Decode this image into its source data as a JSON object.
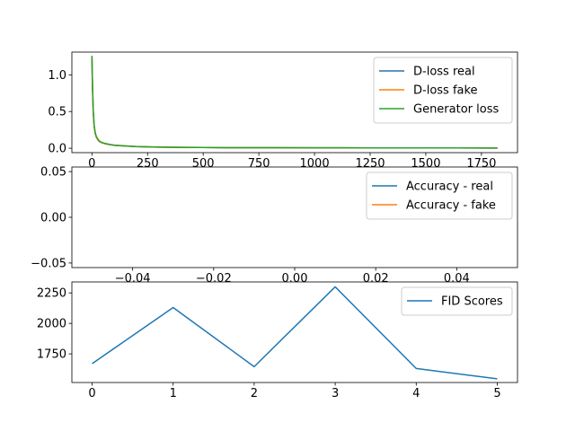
{
  "chart_data": [
    {
      "type": "line",
      "xlim": [
        -90,
        1912
      ],
      "ylim": [
        -0.06,
        1.31
      ],
      "xticks": [
        0,
        250,
        500,
        750,
        1000,
        1250,
        1500,
        1750
      ],
      "xtick_labels": [
        "0",
        "250",
        "500",
        "750",
        "1000",
        "1250",
        "1500",
        "1750"
      ],
      "yticks": [
        0.0,
        0.5,
        1.0
      ],
      "ytick_labels": [
        "0.0",
        "0.5",
        "1.0"
      ],
      "legend": "top-right",
      "grid": false,
      "series": [
        {
          "name": "D-loss real",
          "color": "#1f77b4",
          "x": [
            0,
            3,
            6,
            10,
            15,
            20,
            30,
            40,
            60,
            80,
            100,
            150,
            200,
            250,
            300,
            400,
            500,
            600,
            800,
            1000,
            1250,
            1500,
            1822
          ],
          "y": [
            1.25,
            0.8,
            0.5,
            0.3,
            0.2,
            0.15,
            0.1,
            0.08,
            0.06,
            0.05,
            0.04,
            0.03,
            0.022,
            0.018,
            0.015,
            0.012,
            0.01,
            0.008,
            0.007,
            0.006,
            0.005,
            0.004,
            0.003
          ]
        },
        {
          "name": "D-loss fake",
          "color": "#ff7f0e",
          "x": [
            0,
            3,
            6,
            10,
            15,
            20,
            30,
            40,
            60,
            80,
            100,
            150,
            200,
            250,
            300,
            400,
            500,
            600,
            800,
            1000,
            1250,
            1500,
            1822
          ],
          "y": [
            1.25,
            0.8,
            0.5,
            0.3,
            0.2,
            0.15,
            0.1,
            0.08,
            0.06,
            0.05,
            0.04,
            0.03,
            0.022,
            0.018,
            0.015,
            0.012,
            0.01,
            0.008,
            0.007,
            0.006,
            0.005,
            0.004,
            0.003
          ]
        },
        {
          "name": "Generator loss",
          "color": "#2ca02c",
          "x": [
            0,
            3,
            6,
            10,
            15,
            20,
            30,
            40,
            60,
            80,
            100,
            150,
            200,
            250,
            300,
            400,
            500,
            600,
            800,
            1000,
            1250,
            1500,
            1822
          ],
          "y": [
            1.26,
            0.82,
            0.52,
            0.32,
            0.21,
            0.16,
            0.11,
            0.085,
            0.065,
            0.052,
            0.042,
            0.031,
            0.023,
            0.019,
            0.016,
            0.012,
            0.01,
            0.008,
            0.007,
            0.006,
            0.005,
            0.004,
            0.003
          ]
        }
      ]
    },
    {
      "type": "line",
      "xlim": [
        -0.055,
        0.055
      ],
      "ylim": [
        -0.055,
        0.055
      ],
      "xticks": [
        -0.04,
        -0.02,
        0.0,
        0.02,
        0.04
      ],
      "xtick_labels": [
        "−0.04",
        "−0.02",
        "0.00",
        "0.02",
        "0.04"
      ],
      "yticks": [
        -0.05,
        0.0,
        0.05
      ],
      "ytick_labels": [
        "−0.05",
        "0.00",
        "0.05"
      ],
      "legend": "top-right",
      "grid": false,
      "series": [
        {
          "name": "Accuracy - real",
          "color": "#1f77b4",
          "x": [],
          "y": []
        },
        {
          "name": "Accuracy - fake",
          "color": "#ff7f0e",
          "x": [],
          "y": []
        }
      ]
    },
    {
      "type": "line",
      "xlim": [
        -0.25,
        5.25
      ],
      "ylim": [
        1515,
        2340
      ],
      "xticks": [
        0,
        1,
        2,
        3,
        4,
        5
      ],
      "xtick_labels": [
        "0",
        "1",
        "2",
        "3",
        "4",
        "5"
      ],
      "yticks": [
        1750,
        2000,
        2250
      ],
      "ytick_labels": [
        "1750",
        "2000",
        "2250"
      ],
      "legend": "top-right",
      "grid": false,
      "series": [
        {
          "name": "FID Scores",
          "color": "#1f77b4",
          "x": [
            0,
            1,
            2,
            3,
            4,
            5
          ],
          "y": [
            1670,
            2130,
            1645,
            2300,
            1630,
            1545
          ]
        }
      ]
    }
  ]
}
